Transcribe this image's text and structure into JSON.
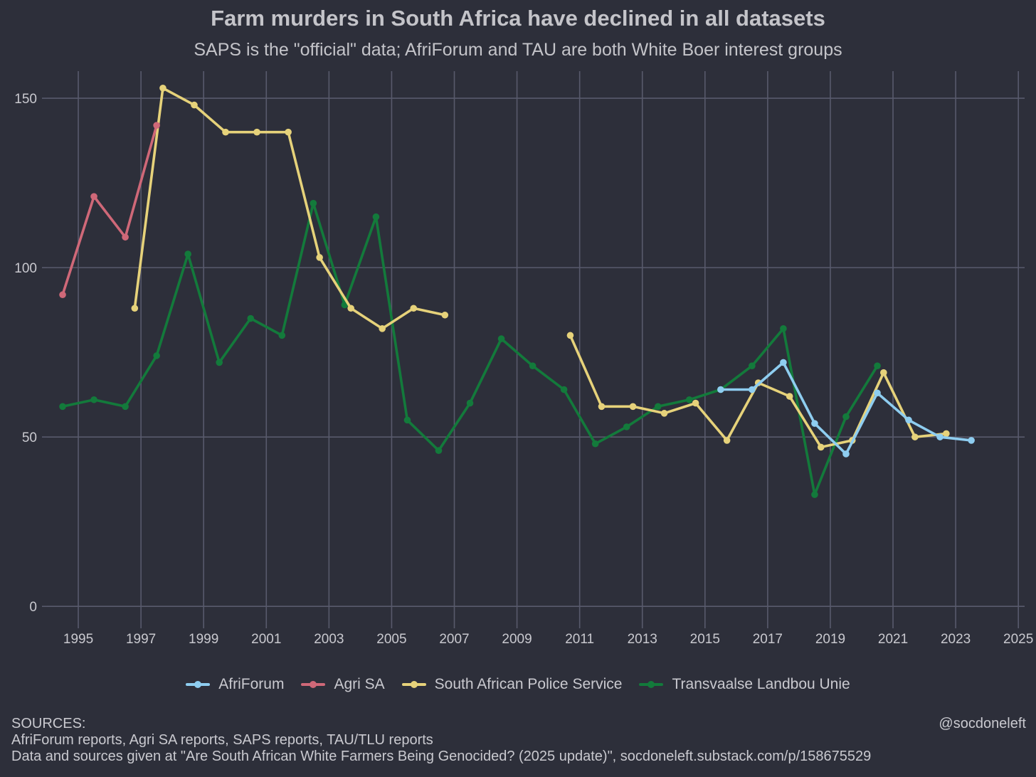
{
  "header": {
    "title": "Farm murders in South Africa have declined in all datasets",
    "subtitle": "SAPS is the \"official\" data; AfriForum and TAU are both White Boer interest groups"
  },
  "footer": {
    "sources_label": "SOURCES:",
    "sources_line1": "AfriForum reports, Agri SA reports, SAPS reports, TAU/TLU reports",
    "sources_line2": "Data and sources given at \"Are South African White Farmers Being Genocided? (2025 update)\", socdoneleft.substack.com/p/158675529",
    "handle": "@socdoneleft"
  },
  "chart_data": {
    "type": "line",
    "title": "Farm murders in South Africa have declined in all datasets",
    "subtitle": "SAPS is the \"official\" data; AfriForum and TAU are both White Boer interest groups",
    "xlabel": "",
    "ylabel": "",
    "xlim": [
      1994.0,
      2025.2
    ],
    "ylim": [
      -5,
      158
    ],
    "x_ticks": [
      1995,
      1997,
      1999,
      2001,
      2003,
      2005,
      2007,
      2009,
      2011,
      2013,
      2015,
      2017,
      2019,
      2021,
      2023,
      2025
    ],
    "y_ticks": [
      0,
      50,
      100,
      150
    ],
    "grid": true,
    "legend_position": "bottom",
    "series": [
      {
        "name": "AfriForum",
        "color": "#8ecdf0",
        "x": [
          2015.5,
          2016.5,
          2017.5,
          2018.5,
          2019.5,
          2020.5,
          2021.5,
          2022.5,
          2023.5
        ],
        "y": [
          64,
          64,
          72,
          54,
          45,
          63,
          55,
          50,
          49
        ]
      },
      {
        "name": "Agri SA",
        "color": "#cf6878",
        "x": [
          1994.5,
          1995.5,
          1996.5,
          1997.5
        ],
        "y": [
          92,
          121,
          109,
          142
        ]
      },
      {
        "name": "South African Police Service",
        "color": "#e6d27a",
        "segments": [
          {
            "x": [
              1996.8,
              1997.7,
              1998.7,
              1999.7,
              2000.7,
              2001.7,
              2002.7,
              2003.7,
              2004.7,
              2005.7,
              2006.7
            ],
            "y": [
              88,
              153,
              148,
              140,
              140,
              140,
              103,
              88,
              82,
              88,
              86
            ]
          },
          {
            "x": [
              2010.7,
              2011.7,
              2012.7,
              2013.7,
              2014.7,
              2015.7,
              2016.7,
              2017.7,
              2018.7,
              2019.7,
              2020.7,
              2021.7,
              2022.7
            ],
            "y": [
              80,
              59,
              59,
              57,
              60,
              49,
              66,
              62,
              47,
              49,
              69,
              50,
              51
            ]
          }
        ]
      },
      {
        "name": "Transvaalse Landbou Unie",
        "color": "#137a3b",
        "x": [
          1994.5,
          1995.5,
          1996.5,
          1997.5,
          1998.5,
          1999.5,
          2000.5,
          2001.5,
          2002.5,
          2003.5,
          2004.5,
          2005.5,
          2006.5,
          2007.5,
          2008.5,
          2009.5,
          2010.5,
          2011.5,
          2012.5,
          2013.5,
          2014.5,
          2015.5,
          2016.5,
          2017.5,
          2018.5,
          2019.5,
          2020.5
        ],
        "y": [
          59,
          61,
          59,
          74,
          104,
          72,
          85,
          80,
          119,
          89,
          115,
          55,
          46,
          60,
          79,
          71,
          64,
          48,
          53,
          59,
          61,
          64,
          71,
          82,
          33,
          56,
          71
        ]
      }
    ]
  }
}
